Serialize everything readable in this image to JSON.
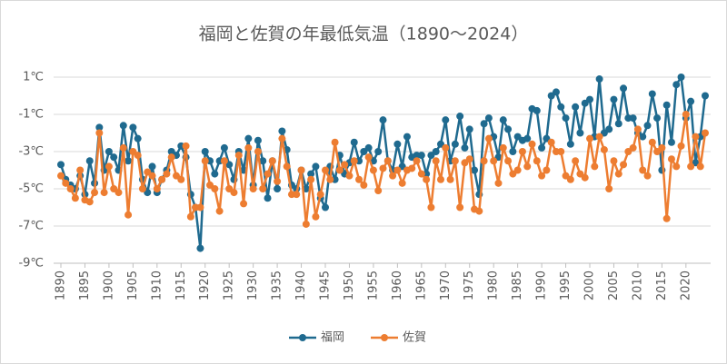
{
  "chart_data": {
    "type": "line",
    "title": "福岡と佐賀の年最低気温（1890～2024）",
    "x": [
      1890,
      1891,
      1892,
      1893,
      1894,
      1895,
      1896,
      1897,
      1898,
      1899,
      1900,
      1901,
      1902,
      1903,
      1904,
      1905,
      1906,
      1907,
      1908,
      1909,
      1910,
      1911,
      1912,
      1913,
      1914,
      1915,
      1916,
      1917,
      1918,
      1919,
      1920,
      1921,
      1922,
      1923,
      1924,
      1925,
      1926,
      1927,
      1928,
      1929,
      1930,
      1931,
      1932,
      1933,
      1934,
      1935,
      1936,
      1937,
      1938,
      1939,
      1940,
      1941,
      1942,
      1943,
      1944,
      1945,
      1946,
      1947,
      1948,
      1949,
      1950,
      1951,
      1952,
      1953,
      1954,
      1955,
      1956,
      1957,
      1958,
      1959,
      1960,
      1961,
      1962,
      1963,
      1964,
      1965,
      1966,
      1967,
      1968,
      1969,
      1970,
      1971,
      1972,
      1973,
      1974,
      1975,
      1976,
      1977,
      1978,
      1979,
      1980,
      1981,
      1982,
      1983,
      1984,
      1985,
      1986,
      1987,
      1988,
      1989,
      1990,
      1991,
      1992,
      1993,
      1994,
      1995,
      1996,
      1997,
      1998,
      1999,
      2000,
      2001,
      2002,
      2003,
      2004,
      2005,
      2006,
      2007,
      2008,
      2009,
      2010,
      2011,
      2012,
      2013,
      2014,
      2015,
      2016,
      2017,
      2018,
      2019,
      2020,
      2021,
      2022,
      2023,
      2024
    ],
    "series": [
      {
        "name": "福岡",
        "color": "#1f6a8f",
        "values": [
          -3.7,
          -4.5,
          -4.8,
          -5.0,
          -4.3,
          -5.3,
          -3.5,
          -4.7,
          -1.7,
          -4.0,
          -3.0,
          -3.3,
          -4.0,
          -1.6,
          -3.5,
          -1.7,
          -2.3,
          -4.5,
          -5.2,
          -3.8,
          -5.2,
          -4.5,
          -4.0,
          -3.0,
          -3.2,
          -2.7,
          -3.3,
          -5.3,
          -6.0,
          -8.2,
          -3.0,
          -3.5,
          -4.2,
          -3.5,
          -2.8,
          -3.7,
          -4.5,
          -3.0,
          -4.0,
          -2.3,
          -4.8,
          -2.4,
          -3.5,
          -5.5,
          -3.5,
          -5.0,
          -1.9,
          -2.9,
          -4.8,
          -5.0,
          -4.0,
          -5.0,
          -4.2,
          -3.8,
          -5.5,
          -6.0,
          -3.8,
          -4.5,
          -3.2,
          -4.2,
          -3.6,
          -2.5,
          -3.5,
          -3.0,
          -2.8,
          -3.5,
          -3.0,
          -1.3,
          -3.5,
          -4.0,
          -2.6,
          -3.8,
          -2.2,
          -3.3,
          -3.2,
          -3.2,
          -4.2,
          -3.2,
          -3.0,
          -2.6,
          -1.3,
          -3.5,
          -2.6,
          -1.1,
          -2.8,
          -1.8,
          -4.0,
          -5.3,
          -1.5,
          -1.2,
          -2.2,
          -3.3,
          -1.3,
          -1.8,
          -3.0,
          -2.2,
          -2.4,
          -2.3,
          -0.7,
          -0.8,
          -2.8,
          -2.3,
          0.0,
          0.2,
          -0.6,
          -1.2,
          -2.6,
          -0.6,
          -2.0,
          -0.4,
          -0.2,
          -2.2,
          0.9,
          -2.0,
          -1.8,
          -0.2,
          -1.5,
          0.4,
          -1.2,
          -1.2,
          -2.0,
          -2.2,
          -1.6,
          0.1,
          -1.2,
          -4.0,
          -0.5,
          -2.5,
          0.6,
          1.0,
          -1.2,
          -0.3,
          -3.6,
          -2.2,
          0.0
        ]
      },
      {
        "name": "佐賀",
        "color": "#ed7d31",
        "values": [
          -4.3,
          -4.7,
          -5.0,
          -5.5,
          -4.0,
          -5.6,
          -5.7,
          -5.2,
          -2.0,
          -5.2,
          -3.8,
          -5.0,
          -5.2,
          -2.8,
          -6.4,
          -3.0,
          -3.2,
          -5.0,
          -4.1,
          -4.3,
          -5.0,
          -4.5,
          -4.2,
          -3.3,
          -4.3,
          -4.5,
          -2.7,
          -6.5,
          -6.0,
          -6.0,
          -3.5,
          -4.8,
          -5.0,
          -6.2,
          -3.5,
          -5.0,
          -5.2,
          -3.2,
          -5.8,
          -2.8,
          -5.0,
          -3.0,
          -5.0,
          -4.2,
          -3.5,
          -4.6,
          -2.3,
          -3.8,
          -5.3,
          -5.3,
          -4.0,
          -6.9,
          -4.5,
          -6.5,
          -5.3,
          -4.0,
          -4.5,
          -2.5,
          -4.0,
          -3.7,
          -4.3,
          -3.5,
          -4.5,
          -4.8,
          -3.3,
          -4.0,
          -5.1,
          -3.9,
          -3.5,
          -4.3,
          -4.0,
          -4.7,
          -4.0,
          -3.9,
          -3.5,
          -4.2,
          -4.5,
          -6.0,
          -3.5,
          -4.5,
          -2.8,
          -4.5,
          -3.5,
          -6.0,
          -3.6,
          -3.4,
          -6.1,
          -6.2,
          -3.5,
          -2.3,
          -3.5,
          -4.7,
          -2.8,
          -3.5,
          -4.2,
          -4.0,
          -3.0,
          -3.8,
          -2.6,
          -3.5,
          -4.3,
          -4.0,
          -2.5,
          -3.0,
          -3.0,
          -4.3,
          -4.5,
          -3.5,
          -4.2,
          -4.4,
          -2.3,
          -3.8,
          -2.2,
          -2.9,
          -5.0,
          -3.5,
          -4.2,
          -3.7,
          -3.0,
          -2.8,
          -1.8,
          -4.0,
          -4.3,
          -2.5,
          -3.0,
          -2.8,
          -6.6,
          -3.4,
          -3.8,
          -2.7,
          -1.0,
          -3.8,
          -2.2,
          -3.8,
          -2.0
        ]
      }
    ],
    "xlim": [
      1890,
      2024
    ],
    "xticks": [
      1890,
      1895,
      1900,
      1905,
      1910,
      1915,
      1920,
      1925,
      1930,
      1935,
      1940,
      1945,
      1950,
      1955,
      1960,
      1965,
      1970,
      1975,
      1980,
      1985,
      1990,
      1995,
      2000,
      2005,
      2010,
      2015,
      2020
    ],
    "ylim": [
      -9,
      1
    ],
    "yticks": [
      {
        "value": -9,
        "label": "-9℃"
      },
      {
        "value": -7,
        "label": "-7℃"
      },
      {
        "value": -5,
        "label": "-5℃"
      },
      {
        "value": -3,
        "label": "-3℃"
      },
      {
        "value": -1,
        "label": "-1℃"
      },
      {
        "value": 1,
        "label": "1℃"
      }
    ],
    "grid": true,
    "legend": "bottom"
  }
}
